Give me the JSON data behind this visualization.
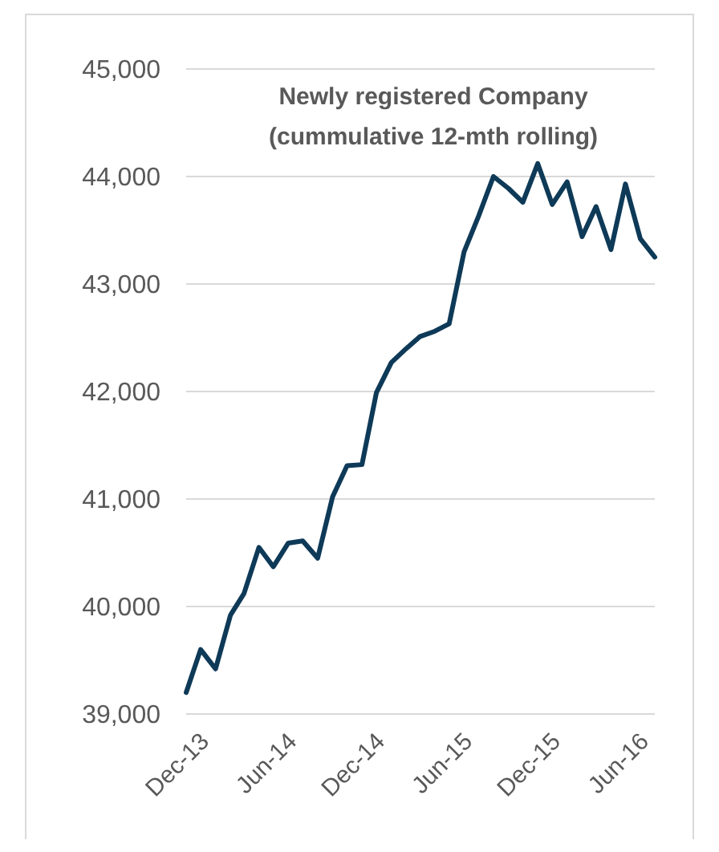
{
  "chart_data": {
    "type": "line",
    "title": "Newly registered Company\n(cummulative 12-mth rolling)",
    "x": [
      "2013-11",
      "2013-12",
      "2014-01",
      "2014-02",
      "2014-03",
      "2014-04",
      "2014-05",
      "2014-06",
      "2014-07",
      "2014-08",
      "2014-09",
      "2014-10",
      "2014-11",
      "2014-12",
      "2015-01",
      "2015-02",
      "2015-03",
      "2015-04",
      "2015-05",
      "2015-06",
      "2015-07",
      "2015-08",
      "2015-09",
      "2015-10",
      "2015-11",
      "2015-12",
      "2016-01",
      "2016-02",
      "2016-03",
      "2016-04",
      "2016-05",
      "2016-06",
      "2016-07"
    ],
    "series": [
      {
        "color": "#0e3a58",
        "values": [
          39200,
          39600,
          39420,
          39920,
          40120,
          40550,
          40370,
          40590,
          40610,
          40450,
          41020,
          41310,
          41320,
          41990,
          42270,
          42400,
          42510,
          42560,
          42630,
          43300,
          43630,
          44000,
          43890,
          43760,
          44120,
          43740,
          43950,
          43440,
          43720,
          43320,
          43930,
          43420,
          43250
        ]
      }
    ],
    "xlim": [
      "2013-11",
      "2016-07"
    ],
    "xticks": [
      {
        "value": "2013-12",
        "label": "Dec-13"
      },
      {
        "value": "2014-06",
        "label": "Jun-14"
      },
      {
        "value": "2014-12",
        "label": "Dec-14"
      },
      {
        "value": "2015-06",
        "label": "Jun-15"
      },
      {
        "value": "2015-12",
        "label": "Dec-15"
      },
      {
        "value": "2016-06",
        "label": "Jun-16"
      }
    ],
    "ylim": [
      39000,
      45000
    ],
    "yticks": [
      {
        "value": 39000,
        "label": "39,000"
      },
      {
        "value": 40000,
        "label": "40,000"
      },
      {
        "value": 41000,
        "label": "41,000"
      },
      {
        "value": 42000,
        "label": "42,000"
      },
      {
        "value": 43000,
        "label": "43,000"
      },
      {
        "value": 44000,
        "label": "44,000"
      },
      {
        "value": 45000,
        "label": "45,000"
      }
    ],
    "grid": "y",
    "marker": "none",
    "line_style": "solid"
  }
}
